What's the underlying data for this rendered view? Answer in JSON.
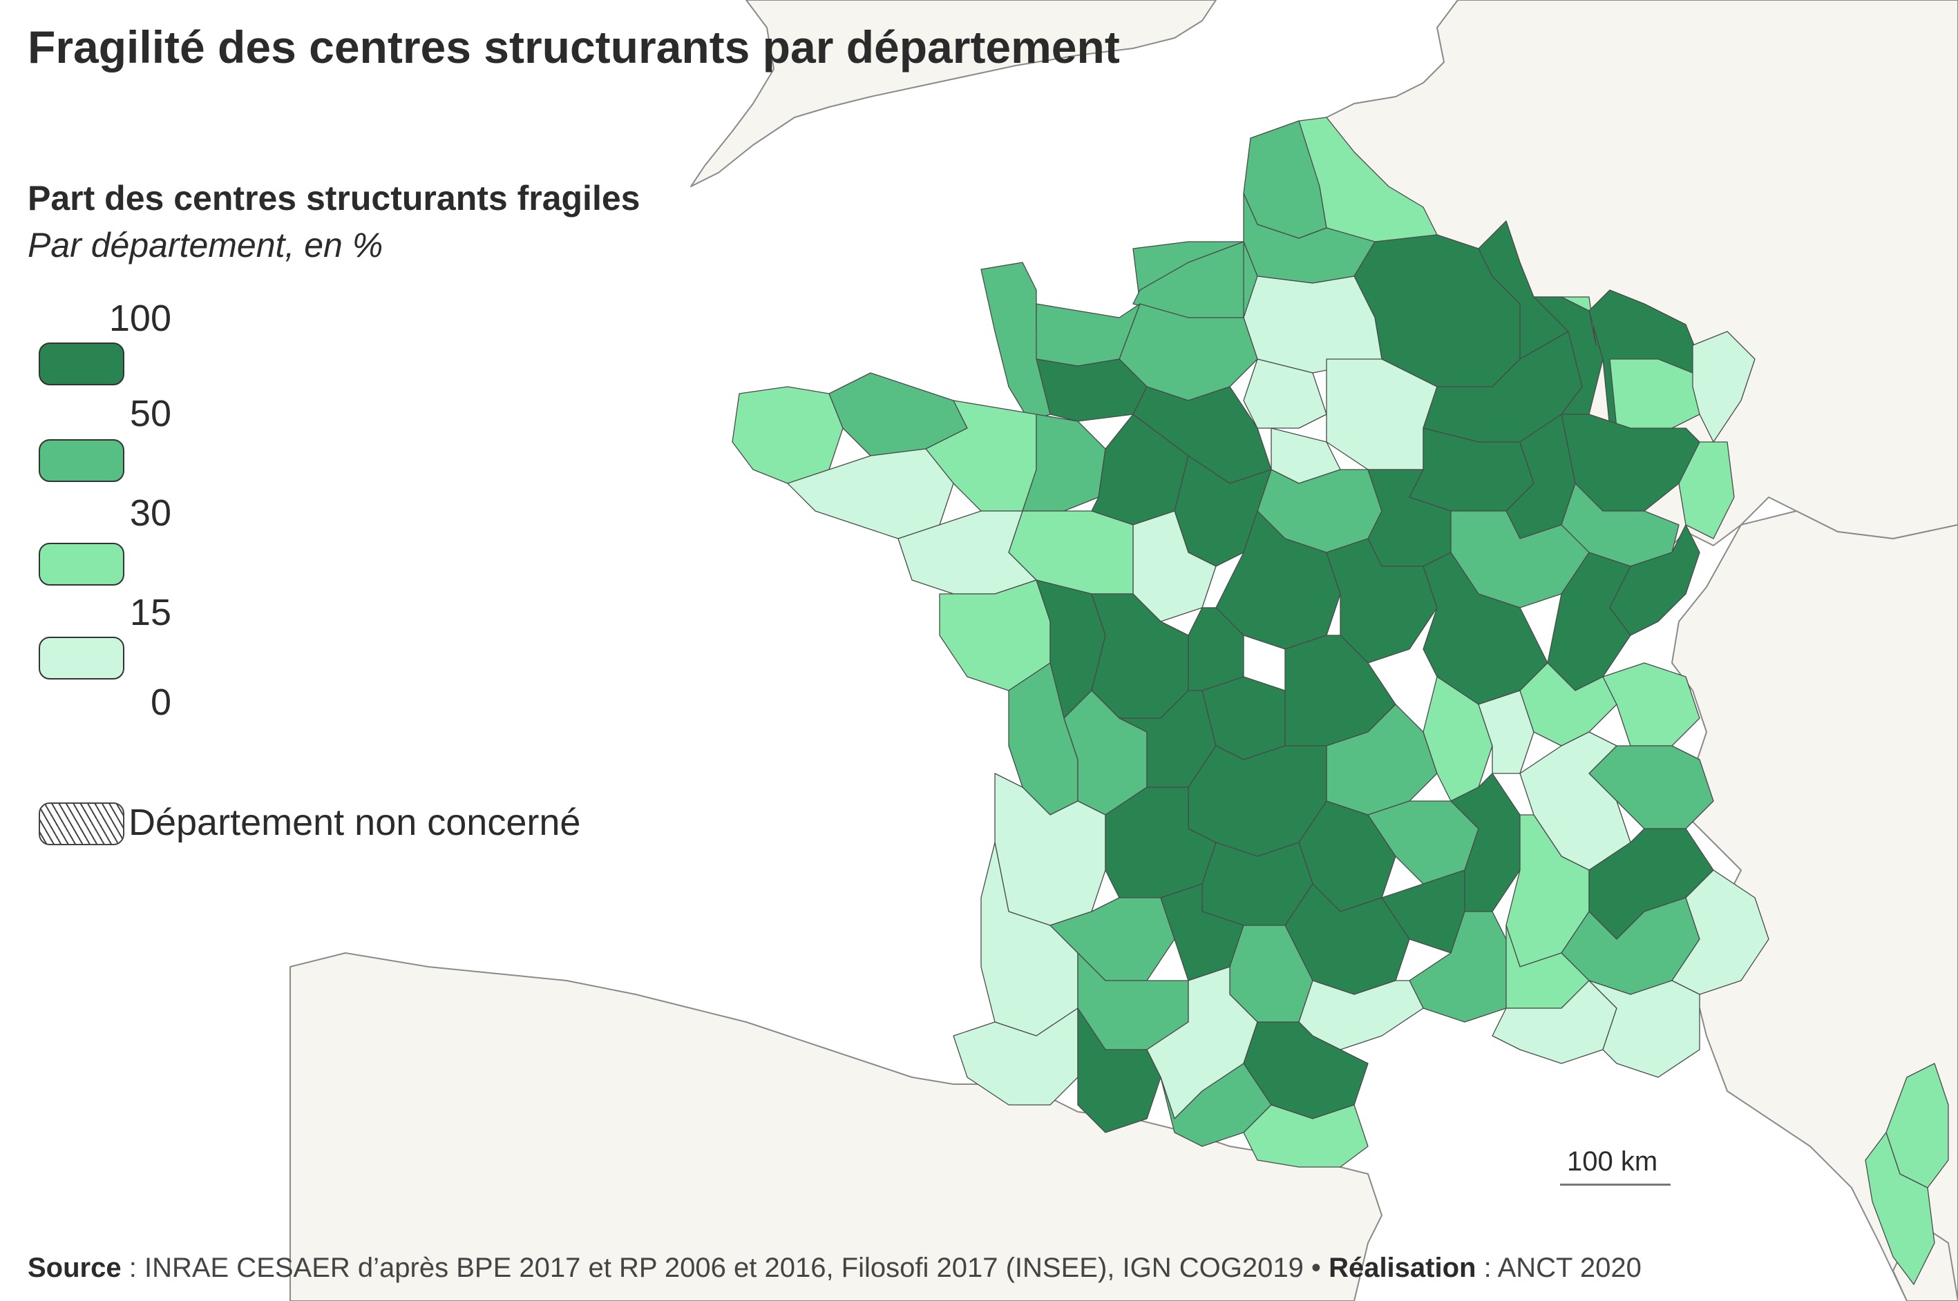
{
  "title": "Fragilité des centres structurants par département",
  "legend": {
    "title": "Part des centres structurants fragiles",
    "subtitle": "Par département, en %",
    "breaks": [
      "100",
      "50",
      "30",
      "15",
      "0"
    ],
    "classes": [
      {
        "range": "50–100",
        "color": "#2a8451"
      },
      {
        "range": "30–50",
        "color": "#57bf84"
      },
      {
        "range": "15–30",
        "color": "#88e8aa"
      },
      {
        "range": "0–15",
        "color": "#cdf6df"
      }
    ],
    "not_concerned_label": "Département non concerné"
  },
  "scale": {
    "label": "100 km"
  },
  "source": {
    "source_label": "Source",
    "source_text": " : INRAE CESAER d’après BPE 2017 et RP 2006 et 2016, Filosofi 2017 (INSEE), IGN COG2019 • ",
    "realisation_label": "Réalisation",
    "realisation_text": " : ANCT 2020"
  },
  "colors": {
    "sea": "#ffffff",
    "neighbour_land": "#f7f5f0",
    "class_high": "#2a8451",
    "class_mid_high": "#57bf84",
    "class_mid_low": "#88e8aa",
    "class_low": "#cdf6df"
  }
}
